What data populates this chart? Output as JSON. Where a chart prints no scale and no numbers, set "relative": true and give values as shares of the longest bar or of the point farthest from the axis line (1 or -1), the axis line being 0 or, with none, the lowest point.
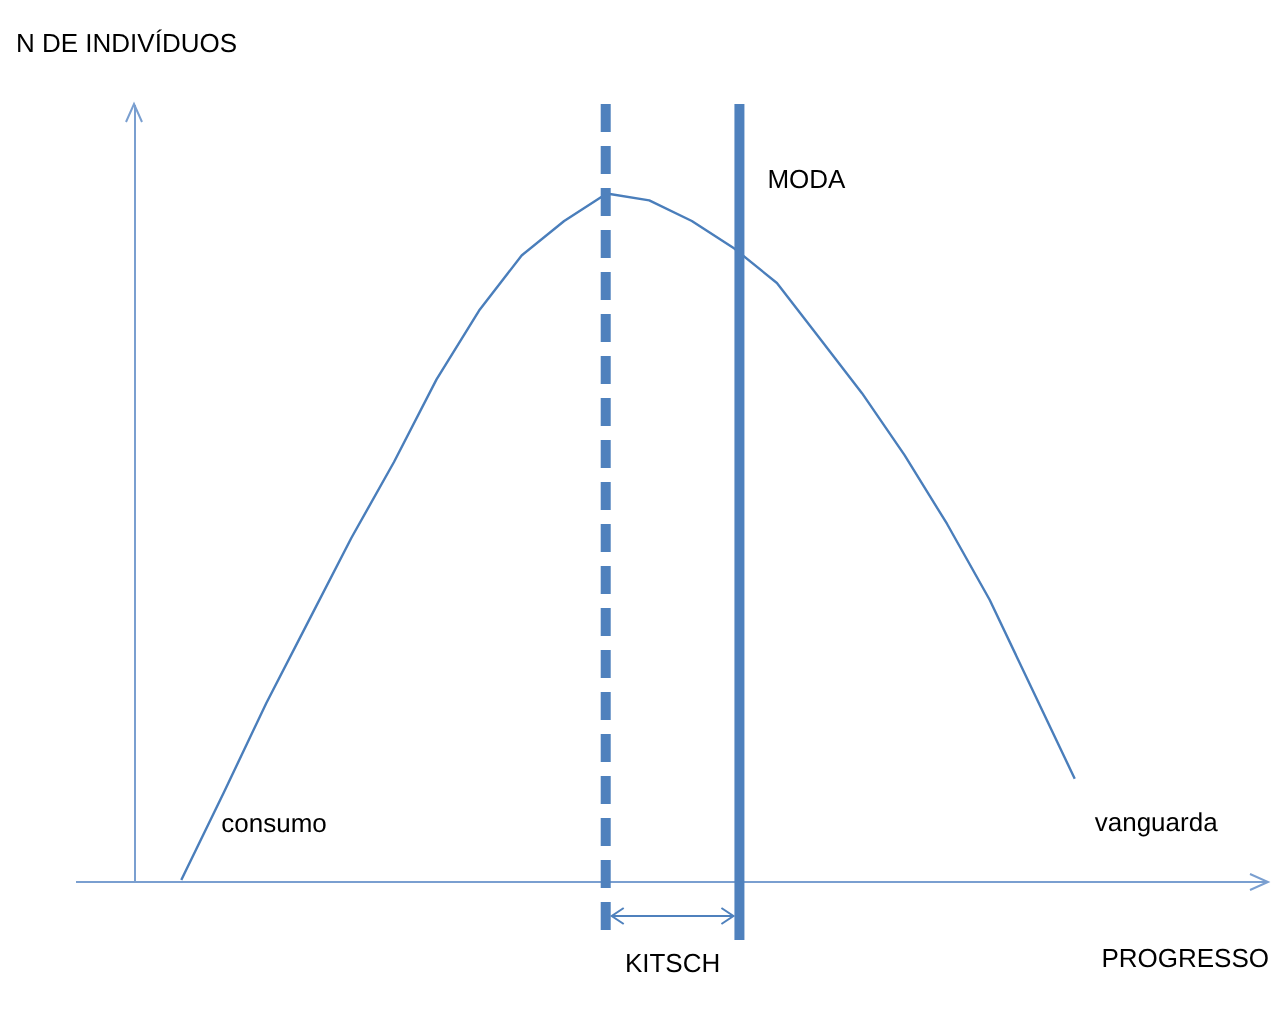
{
  "chart_data": {
    "type": "line",
    "relative": true,
    "xlabel": "PROGRESSO",
    "tick_labels": false,
    "grid": false,
    "marker": "none",
    "line_style": "solid",
    "categories": [
      null,
      null,
      null,
      null,
      null,
      null,
      null,
      null,
      null,
      null,
      null,
      null,
      null,
      null,
      null,
      null,
      null,
      null,
      null,
      null,
      null,
      null
    ],
    "series": [
      {
        "color": "#4a7ebb",
        "values": [
          0.003,
          0.13,
          0.26,
          0.38,
          0.5,
          0.61,
          0.73,
          0.83,
          0.91,
          0.96,
          1,
          0.99,
          0.96,
          0.92,
          0.87,
          0.79,
          0.71,
          0.62,
          0.52,
          0.41,
          0.28,
          0.15
        ]
      }
    ],
    "annotations": [
      "N DE INDIVÍDUOS",
      "MODA",
      "consumo",
      "vanguarda",
      "KITSCH"
    ]
  }
}
